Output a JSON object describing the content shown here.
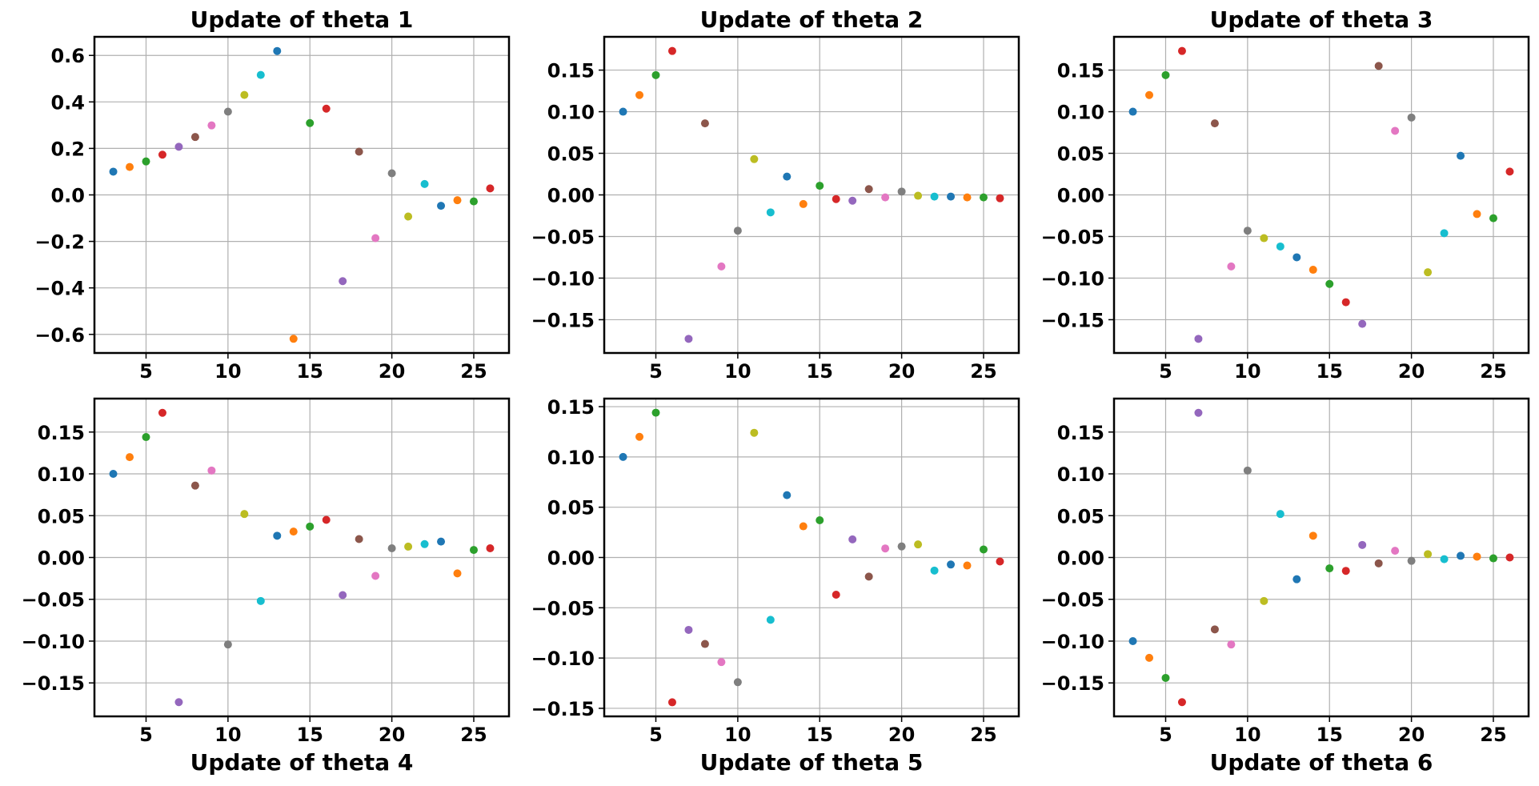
{
  "chart_data": [
    {
      "type": "scatter",
      "title": "Update of theta 1",
      "xlabel": "",
      "ylabel": "",
      "xlim": [
        1.85,
        27.15
      ],
      "ylim": [
        -0.68,
        0.68
      ],
      "xticks": [
        5,
        10,
        15,
        20,
        25
      ],
      "xtick_labels": [
        "5",
        "10",
        "15",
        "20",
        "25"
      ],
      "yticks": [
        -0.6,
        -0.4,
        -0.2,
        0.0,
        0.2,
        0.4,
        0.6
      ],
      "ytick_labels": [
        "−0.6",
        "−0.4",
        "−0.2",
        "0.0",
        "0.2",
        "0.4",
        "0.6"
      ],
      "grid": true,
      "x": [
        3,
        4,
        5,
        6,
        7,
        8,
        9,
        10,
        11,
        12,
        13,
        14,
        15,
        16,
        17,
        18,
        19,
        20,
        21,
        22,
        23,
        24,
        25,
        26
      ],
      "y": [
        0.1,
        0.12,
        0.144,
        0.173,
        0.207,
        0.249,
        0.299,
        0.358,
        0.43,
        0.516,
        0.619,
        -0.619,
        0.309,
        0.371,
        -0.371,
        0.186,
        -0.186,
        0.093,
        -0.093,
        0.047,
        -0.047,
        -0.023,
        -0.028,
        0.028
      ]
    },
    {
      "type": "scatter",
      "title": "Update of theta 2",
      "xlabel": "",
      "ylabel": "",
      "xlim": [
        1.85,
        27.15
      ],
      "ylim": [
        -0.19,
        0.19
      ],
      "xticks": [
        5,
        10,
        15,
        20,
        25
      ],
      "xtick_labels": [
        "5",
        "10",
        "15",
        "20",
        "25"
      ],
      "yticks": [
        -0.15,
        -0.1,
        -0.05,
        0.0,
        0.05,
        0.1,
        0.15
      ],
      "ytick_labels": [
        "−0.15",
        "−0.10",
        "−0.05",
        "0.00",
        "0.05",
        "0.10",
        "0.15"
      ],
      "grid": true,
      "x": [
        3,
        4,
        5,
        6,
        7,
        8,
        9,
        10,
        11,
        12,
        13,
        14,
        15,
        16,
        17,
        18,
        19,
        20,
        21,
        22,
        23,
        24,
        25,
        26
      ],
      "y": [
        0.1,
        0.12,
        0.144,
        0.173,
        -0.173,
        0.086,
        -0.086,
        -0.043,
        0.043,
        -0.021,
        0.022,
        -0.011,
        0.011,
        -0.005,
        -0.007,
        0.007,
        -0.003,
        0.004,
        -0.001,
        -0.002,
        -0.002,
        -0.003,
        -0.003,
        -0.004
      ]
    },
    {
      "type": "scatter",
      "title": "Update of theta 3",
      "xlabel": "",
      "ylabel": "",
      "xlim": [
        1.85,
        27.15
      ],
      "ylim": [
        -0.19,
        0.19
      ],
      "xticks": [
        5,
        10,
        15,
        20,
        25
      ],
      "xtick_labels": [
        "5",
        "10",
        "15",
        "20",
        "25"
      ],
      "yticks": [
        -0.15,
        -0.1,
        -0.05,
        0.0,
        0.05,
        0.1,
        0.15
      ],
      "ytick_labels": [
        "−0.15",
        "−0.10",
        "−0.05",
        "0.00",
        "0.05",
        "0.10",
        "0.15"
      ],
      "grid": true,
      "x": [
        3,
        4,
        5,
        6,
        7,
        8,
        9,
        10,
        11,
        12,
        13,
        14,
        15,
        16,
        17,
        18,
        19,
        20,
        21,
        22,
        23,
        24,
        25,
        26
      ],
      "y": [
        0.1,
        0.12,
        0.144,
        0.173,
        -0.173,
        0.086,
        -0.086,
        -0.043,
        -0.052,
        -0.062,
        -0.075,
        -0.09,
        -0.107,
        -0.129,
        -0.155,
        0.155,
        0.077,
        0.093,
        -0.093,
        -0.046,
        0.047,
        -0.023,
        -0.028,
        0.028
      ]
    },
    {
      "type": "scatter",
      "title": "",
      "xlabel": "Update of theta 4",
      "ylabel": "",
      "xlim": [
        1.85,
        27.15
      ],
      "ylim": [
        -0.19,
        0.19
      ],
      "xticks": [
        5,
        10,
        15,
        20,
        25
      ],
      "xtick_labels": [
        "5",
        "10",
        "15",
        "20",
        "25"
      ],
      "yticks": [
        -0.15,
        -0.1,
        -0.05,
        0.0,
        0.05,
        0.1,
        0.15
      ],
      "ytick_labels": [
        "−0.15",
        "−0.10",
        "−0.05",
        "0.00",
        "0.05",
        "0.10",
        "0.15"
      ],
      "grid": true,
      "x": [
        3,
        4,
        5,
        6,
        7,
        8,
        9,
        10,
        11,
        12,
        13,
        14,
        15,
        16,
        17,
        18,
        19,
        20,
        21,
        22,
        23,
        24,
        25,
        26
      ],
      "y": [
        0.1,
        0.12,
        0.144,
        0.173,
        -0.173,
        0.086,
        0.104,
        -0.104,
        0.052,
        -0.052,
        0.026,
        0.031,
        0.037,
        0.045,
        -0.045,
        0.022,
        -0.022,
        0.011,
        0.013,
        0.016,
        0.019,
        -0.019,
        0.009,
        0.011
      ]
    },
    {
      "type": "scatter",
      "title": "",
      "xlabel": "Update of theta 5",
      "ylabel": "",
      "xlim": [
        1.85,
        27.15
      ],
      "ylim": [
        -0.158,
        0.158
      ],
      "xticks": [
        5,
        10,
        15,
        20,
        25
      ],
      "xtick_labels": [
        "5",
        "10",
        "15",
        "20",
        "25"
      ],
      "yticks": [
        -0.15,
        -0.1,
        -0.05,
        0.0,
        0.05,
        0.1,
        0.15
      ],
      "ytick_labels": [
        "−0.15",
        "−0.10",
        "−0.05",
        "0.00",
        "0.05",
        "0.10",
        "0.15"
      ],
      "grid": true,
      "x": [
        3,
        4,
        5,
        6,
        7,
        8,
        9,
        10,
        11,
        12,
        13,
        14,
        15,
        16,
        17,
        18,
        19,
        20,
        21,
        22,
        23,
        24,
        25,
        26
      ],
      "y": [
        0.1,
        0.12,
        0.144,
        -0.144,
        -0.072,
        -0.086,
        -0.104,
        -0.124,
        0.124,
        -0.062,
        0.062,
        0.031,
        0.037,
        -0.037,
        0.018,
        -0.019,
        0.009,
        0.011,
        0.013,
        -0.013,
        -0.007,
        -0.008,
        0.008,
        -0.004
      ]
    },
    {
      "type": "scatter",
      "title": "",
      "xlabel": "Update of theta 6",
      "ylabel": "",
      "xlim": [
        1.85,
        27.15
      ],
      "ylim": [
        -0.19,
        0.19
      ],
      "xticks": [
        5,
        10,
        15,
        20,
        25
      ],
      "xtick_labels": [
        "5",
        "10",
        "15",
        "20",
        "25"
      ],
      "yticks": [
        -0.15,
        -0.1,
        -0.05,
        0.0,
        0.05,
        0.1,
        0.15
      ],
      "ytick_labels": [
        "−0.15",
        "−0.10",
        "−0.05",
        "0.00",
        "0.05",
        "0.10",
        "0.15"
      ],
      "grid": true,
      "x": [
        3,
        4,
        5,
        6,
        7,
        8,
        9,
        10,
        11,
        12,
        13,
        14,
        15,
        16,
        17,
        18,
        19,
        20,
        21,
        22,
        23,
        24,
        25,
        26
      ],
      "y": [
        -0.1,
        -0.12,
        -0.144,
        -0.173,
        0.173,
        -0.086,
        -0.104,
        0.104,
        -0.052,
        0.052,
        -0.026,
        0.026,
        -0.013,
        -0.016,
        0.015,
        -0.007,
        0.008,
        -0.004,
        0.004,
        -0.002,
        0.002,
        0.001,
        -0.001,
        0.0
      ]
    }
  ],
  "point_colors": [
    "#1f77b4",
    "#ff7f0e",
    "#2ca02c",
    "#d62728",
    "#9467bd",
    "#8c564b",
    "#e377c2",
    "#7f7f7f",
    "#bcbd22",
    "#17becf"
  ]
}
